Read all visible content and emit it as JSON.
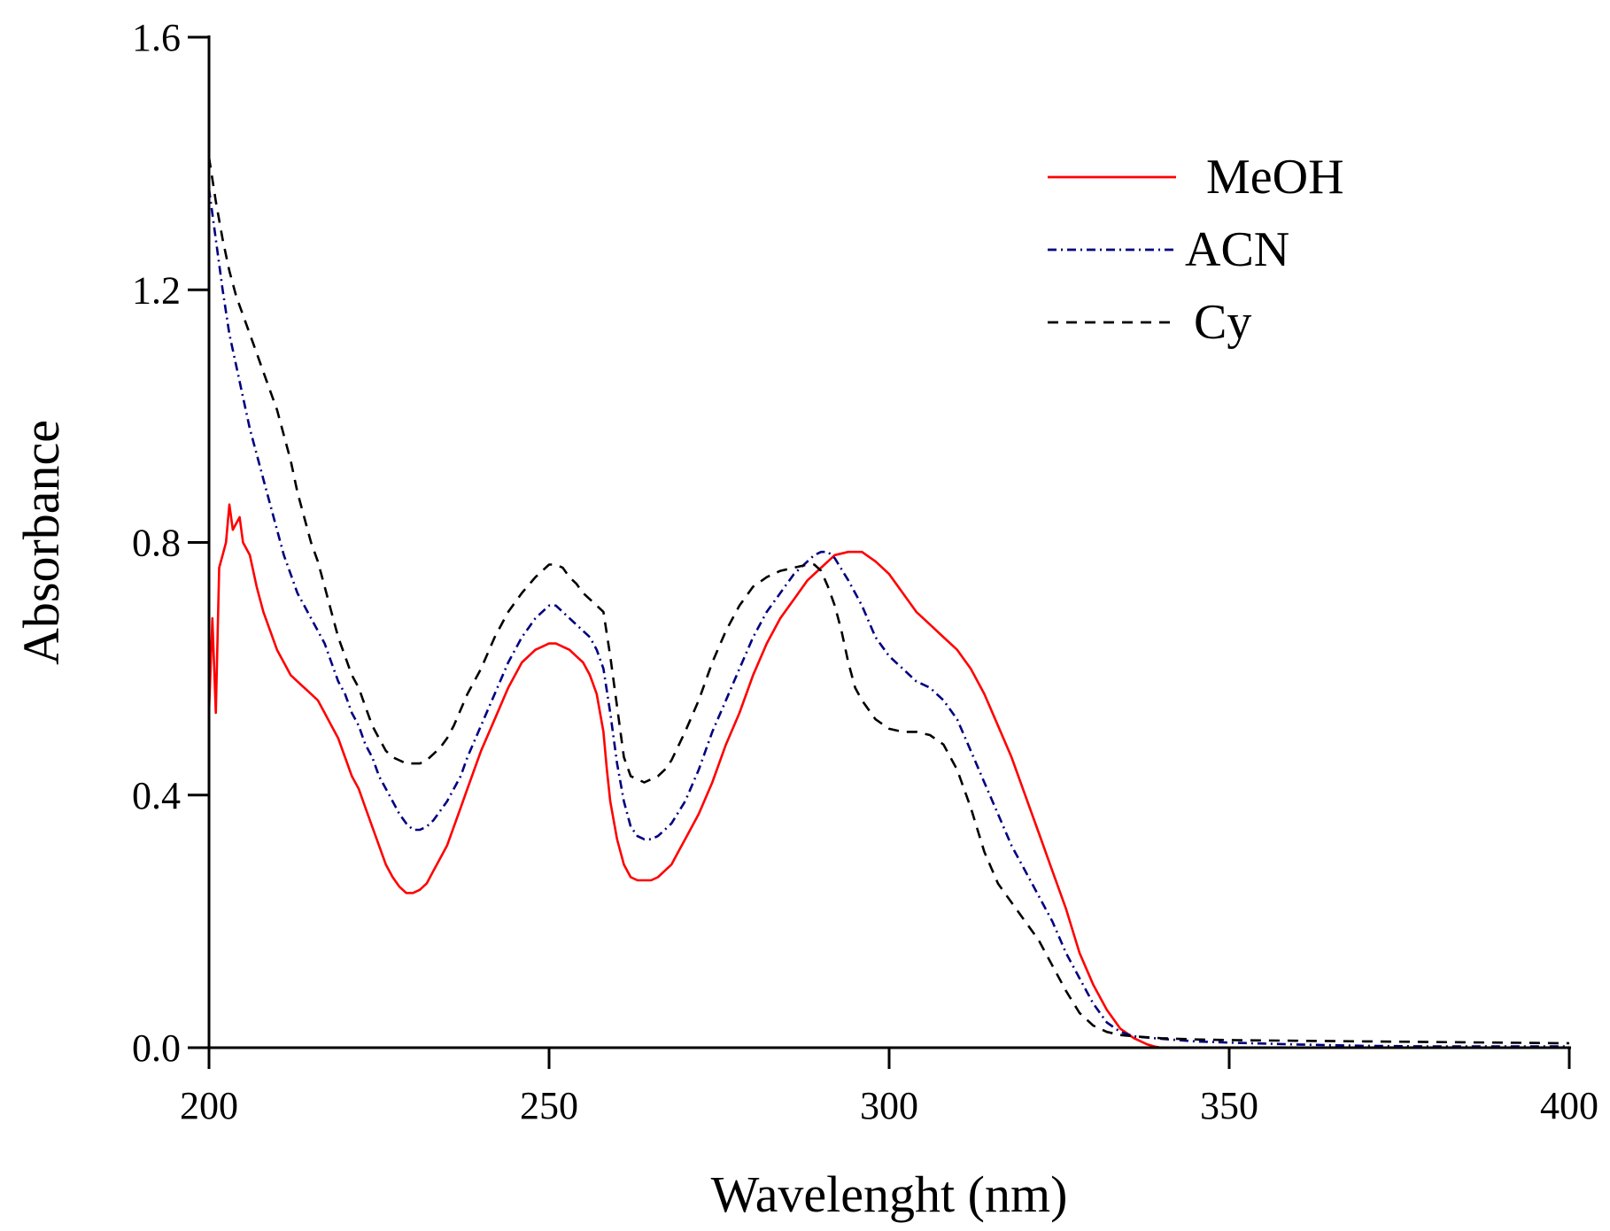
{
  "chart_data": {
    "type": "line",
    "title": "",
    "xlabel": "Wavelenght (nm)",
    "ylabel": "Absorbance",
    "xlim": [
      200,
      400
    ],
    "ylim": [
      0.0,
      1.6
    ],
    "xticks": [
      200,
      250,
      300,
      350,
      400
    ],
    "yticks": [
      0.0,
      0.4,
      0.8,
      1.2,
      1.6
    ],
    "xtick_labels": [
      "200",
      "250",
      "300",
      "350",
      "400"
    ],
    "ytick_labels": [
      "0.0",
      "0.4",
      "0.8",
      "1.2",
      "1.6"
    ],
    "grid": false,
    "legend_position": "top-right",
    "series": [
      {
        "name": "MeOH",
        "color": "#ff0000",
        "style": "solid",
        "x": [
          200,
          200.5,
          201,
          201.5,
          202,
          202.5,
          203,
          203.5,
          204,
          204.5,
          205,
          206,
          207,
          208,
          209,
          210,
          211,
          212,
          213,
          214,
          215,
          216,
          217,
          218,
          219,
          220,
          221,
          222,
          223,
          224,
          225,
          226,
          227,
          228,
          229,
          230,
          231,
          232,
          233,
          234,
          235,
          236,
          237,
          238,
          239,
          240,
          242,
          244,
          246,
          248,
          249,
          250,
          251,
          252,
          253,
          254,
          255,
          256,
          257,
          258,
          258.5,
          259,
          260,
          261,
          262,
          263,
          264,
          265,
          266,
          267,
          268,
          269,
          270,
          272,
          274,
          276,
          278,
          280,
          282,
          284,
          286,
          288,
          290,
          292,
          294,
          296,
          298,
          300,
          302,
          304,
          306,
          308,
          310,
          312,
          314,
          316,
          318,
          320,
          322,
          324,
          326,
          328,
          330,
          332,
          334,
          336,
          338,
          339,
          340,
          345,
          350,
          360,
          370,
          380,
          390,
          400
        ],
        "y": [
          0.53,
          0.68,
          0.53,
          0.76,
          0.78,
          0.8,
          0.86,
          0.82,
          0.83,
          0.84,
          0.8,
          0.78,
          0.73,
          0.69,
          0.66,
          0.63,
          0.61,
          0.59,
          0.58,
          0.57,
          0.56,
          0.55,
          0.53,
          0.51,
          0.49,
          0.46,
          0.43,
          0.41,
          0.38,
          0.35,
          0.32,
          0.29,
          0.27,
          0.255,
          0.245,
          0.245,
          0.25,
          0.26,
          0.28,
          0.3,
          0.32,
          0.35,
          0.38,
          0.41,
          0.44,
          0.47,
          0.52,
          0.57,
          0.61,
          0.63,
          0.635,
          0.64,
          0.64,
          0.635,
          0.63,
          0.62,
          0.61,
          0.59,
          0.56,
          0.5,
          0.44,
          0.39,
          0.33,
          0.29,
          0.27,
          0.265,
          0.265,
          0.265,
          0.27,
          0.28,
          0.29,
          0.31,
          0.33,
          0.37,
          0.42,
          0.48,
          0.53,
          0.59,
          0.64,
          0.68,
          0.71,
          0.74,
          0.76,
          0.78,
          0.785,
          0.785,
          0.77,
          0.75,
          0.72,
          0.69,
          0.67,
          0.65,
          0.63,
          0.6,
          0.56,
          0.51,
          0.46,
          0.4,
          0.34,
          0.28,
          0.22,
          0.15,
          0.1,
          0.06,
          0.03,
          0.015,
          0.005,
          0.002,
          0.0,
          0.0,
          0.0,
          0.0,
          0.0,
          0.0,
          0.0,
          0.0
        ]
      },
      {
        "name": "ACN",
        "color": "#000080",
        "style": "dashdot",
        "x": [
          200,
          201,
          202,
          203,
          204,
          205,
          206,
          207,
          208,
          209,
          210,
          211,
          212,
          213,
          214,
          215,
          216,
          217,
          218,
          219,
          220,
          221,
          222,
          223,
          224,
          225,
          226,
          227,
          228,
          229,
          230,
          231,
          232,
          233,
          234,
          235,
          236,
          237,
          238,
          240,
          242,
          244,
          246,
          248,
          249,
          250,
          251,
          252,
          253,
          254,
          256,
          257,
          258,
          259,
          260,
          261,
          262,
          263,
          264,
          265,
          266,
          267,
          268,
          270,
          272,
          274,
          276,
          278,
          280,
          282,
          284,
          286,
          288,
          289,
          290,
          291,
          292,
          294,
          296,
          298,
          300,
          302,
          304,
          306,
          308,
          310,
          312,
          314,
          316,
          318,
          320,
          322,
          324,
          326,
          328,
          330,
          332,
          334,
          336,
          340,
          345,
          350,
          360,
          370,
          380,
          390,
          400
        ],
        "y": [
          1.36,
          1.28,
          1.2,
          1.13,
          1.08,
          1.03,
          0.98,
          0.94,
          0.9,
          0.86,
          0.82,
          0.78,
          0.75,
          0.72,
          0.7,
          0.68,
          0.66,
          0.64,
          0.61,
          0.58,
          0.56,
          0.53,
          0.51,
          0.48,
          0.46,
          0.43,
          0.41,
          0.39,
          0.37,
          0.355,
          0.345,
          0.345,
          0.35,
          0.36,
          0.375,
          0.39,
          0.41,
          0.43,
          0.46,
          0.51,
          0.56,
          0.61,
          0.65,
          0.68,
          0.69,
          0.7,
          0.7,
          0.69,
          0.68,
          0.67,
          0.65,
          0.63,
          0.6,
          0.53,
          0.45,
          0.39,
          0.35,
          0.335,
          0.33,
          0.33,
          0.335,
          0.345,
          0.355,
          0.39,
          0.44,
          0.5,
          0.55,
          0.6,
          0.65,
          0.69,
          0.72,
          0.75,
          0.77,
          0.78,
          0.785,
          0.785,
          0.775,
          0.74,
          0.7,
          0.65,
          0.62,
          0.6,
          0.58,
          0.57,
          0.55,
          0.52,
          0.47,
          0.42,
          0.37,
          0.32,
          0.28,
          0.24,
          0.2,
          0.15,
          0.11,
          0.07,
          0.04,
          0.025,
          0.018,
          0.014,
          0.01,
          0.008,
          0.005,
          0.003,
          0.002,
          0.002,
          0.002
        ]
      },
      {
        "name": "Cy",
        "color": "#000000",
        "style": "dashed",
        "x": [
          200,
          201,
          202,
          203,
          204,
          205,
          206,
          207,
          208,
          209,
          210,
          211,
          212,
          213,
          214,
          215,
          216,
          217,
          218,
          219,
          220,
          221,
          222,
          223,
          224,
          225,
          226,
          227,
          228,
          229,
          230,
          231,
          232,
          233,
          234,
          235,
          236,
          238,
          240,
          242,
          244,
          246,
          248,
          249,
          250,
          251,
          252,
          253,
          254,
          255,
          256,
          257,
          258,
          259,
          260,
          261,
          262,
          263,
          264,
          265,
          266,
          267,
          268,
          270,
          272,
          274,
          276,
          278,
          280,
          282,
          284,
          286,
          288,
          289,
          290,
          291,
          292,
          293,
          294,
          295,
          296,
          298,
          300,
          302,
          304,
          306,
          308,
          310,
          312,
          314,
          316,
          318,
          320,
          322,
          324,
          326,
          328,
          330,
          332,
          334,
          336,
          340,
          345,
          350,
          360,
          370,
          380,
          390,
          400
        ],
        "y": [
          1.41,
          1.34,
          1.28,
          1.23,
          1.19,
          1.16,
          1.13,
          1.1,
          1.07,
          1.04,
          1.01,
          0.97,
          0.93,
          0.88,
          0.84,
          0.8,
          0.77,
          0.73,
          0.69,
          0.65,
          0.62,
          0.59,
          0.57,
          0.54,
          0.51,
          0.49,
          0.47,
          0.46,
          0.455,
          0.45,
          0.45,
          0.45,
          0.455,
          0.465,
          0.475,
          0.49,
          0.51,
          0.56,
          0.6,
          0.65,
          0.69,
          0.72,
          0.745,
          0.755,
          0.765,
          0.765,
          0.76,
          0.745,
          0.735,
          0.72,
          0.71,
          0.7,
          0.69,
          0.62,
          0.54,
          0.46,
          0.43,
          0.425,
          0.42,
          0.425,
          0.43,
          0.44,
          0.455,
          0.5,
          0.55,
          0.61,
          0.66,
          0.7,
          0.73,
          0.745,
          0.755,
          0.76,
          0.765,
          0.765,
          0.755,
          0.73,
          0.7,
          0.66,
          0.61,
          0.57,
          0.55,
          0.52,
          0.505,
          0.5,
          0.5,
          0.495,
          0.48,
          0.44,
          0.38,
          0.31,
          0.26,
          0.23,
          0.2,
          0.17,
          0.13,
          0.09,
          0.055,
          0.035,
          0.025,
          0.02,
          0.018,
          0.015,
          0.013,
          0.012,
          0.011,
          0.01,
          0.009,
          0.008,
          0.007
        ]
      }
    ]
  }
}
